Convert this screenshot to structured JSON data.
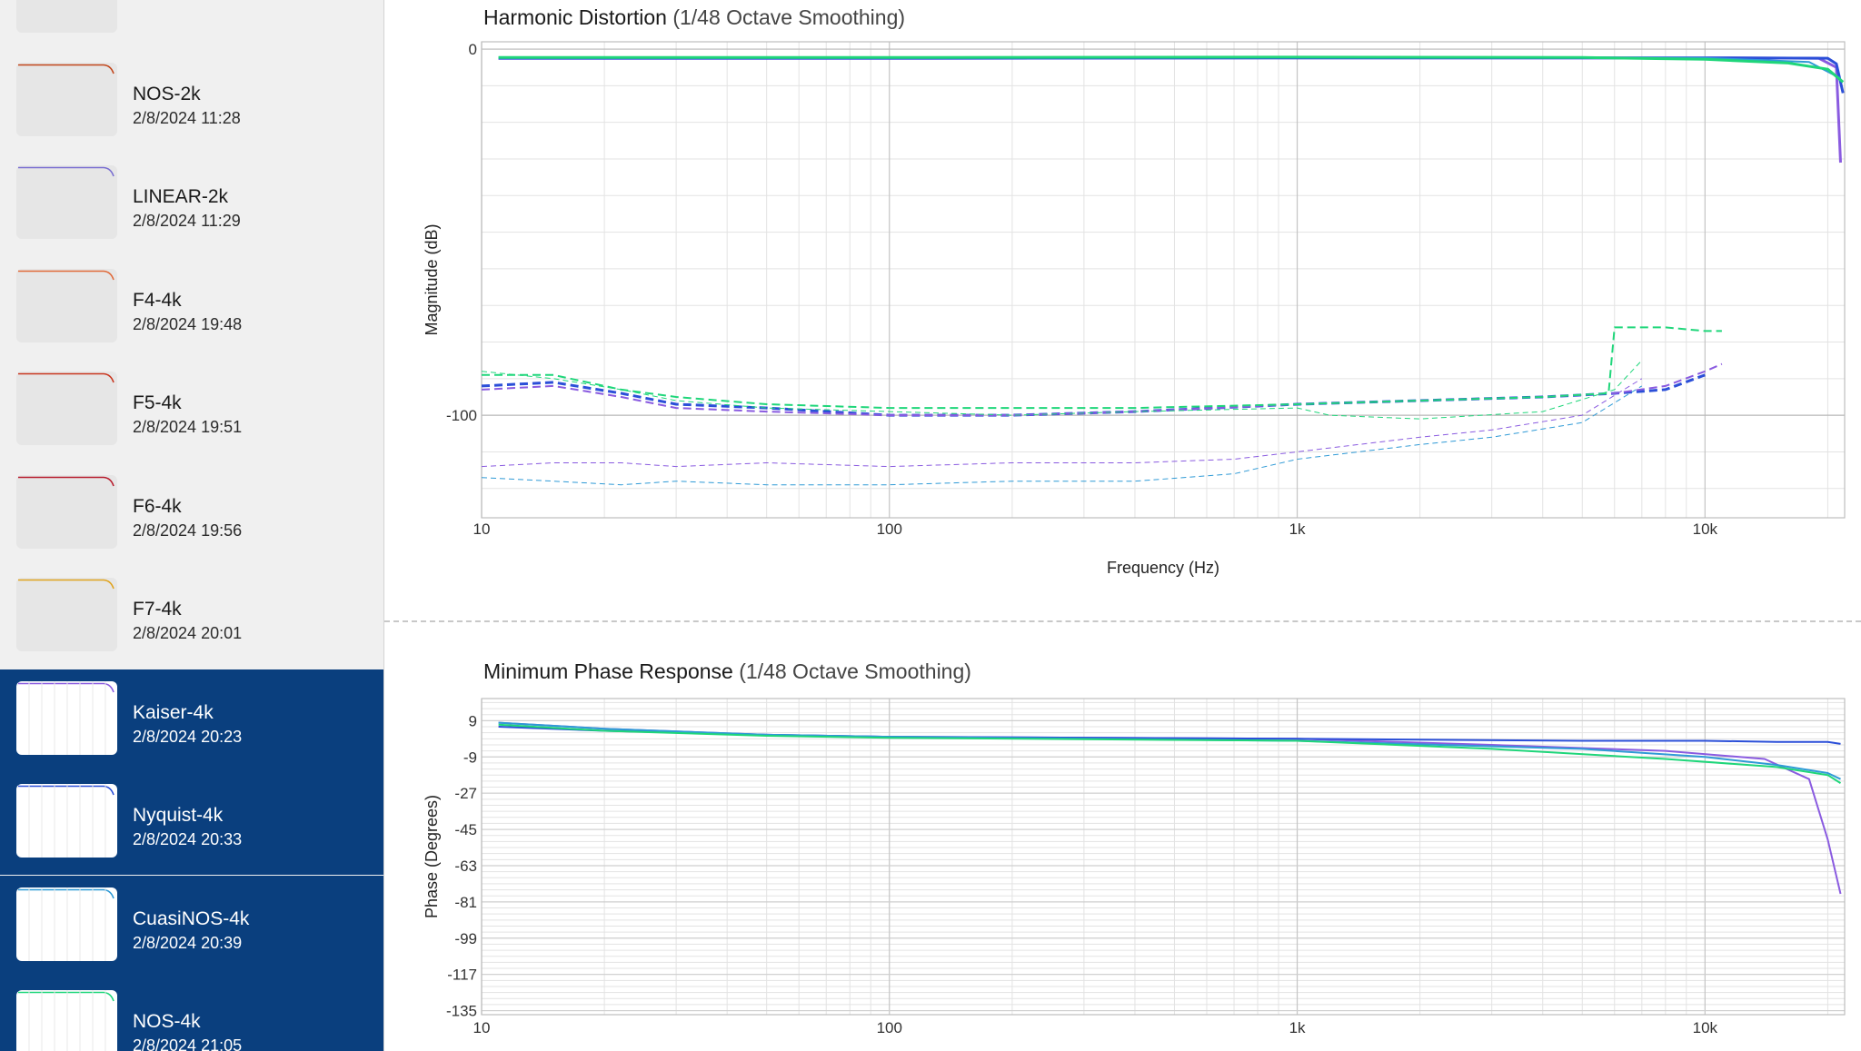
{
  "sidebar": {
    "items": [
      {
        "name": "",
        "date": "",
        "selected": false,
        "color": "#9a9a9a"
      },
      {
        "name": "NOS-2k",
        "date": "2/8/2024 11:28",
        "selected": false,
        "color": "#c2461b"
      },
      {
        "name": "LINEAR-2k",
        "date": "2/8/2024 11:29",
        "selected": false,
        "color": "#7a6fd1"
      },
      {
        "name": "F4-4k",
        "date": "2/8/2024 19:48",
        "selected": false,
        "color": "#e06a3a"
      },
      {
        "name": "F5-4k",
        "date": "2/8/2024 19:51",
        "selected": false,
        "color": "#c9361f"
      },
      {
        "name": "F6-4k",
        "date": "2/8/2024 19:56",
        "selected": false,
        "color": "#b81d2e"
      },
      {
        "name": "F7-4k",
        "date": "2/8/2024 20:01",
        "selected": false,
        "color": "#e0a31e"
      },
      {
        "name": "Kaiser-4k",
        "date": "2/8/2024 20:23",
        "selected": true,
        "color": "#8a5be0"
      },
      {
        "name": "Nyquist-4k",
        "date": "2/8/2024 20:33",
        "selected": true,
        "color": "#2b4fd8"
      },
      {
        "name": "CuasiNOS-4k",
        "date": "2/8/2024 20:39",
        "selected": true,
        "color": "#2f9ad6"
      },
      {
        "name": "NOS-4k",
        "date": "2/8/2024 21:05",
        "selected": true,
        "color": "#1fd67a"
      }
    ]
  },
  "chart_data": [
    {
      "type": "line",
      "title": "Harmonic Distortion",
      "subtitle": "(1/48 Octave Smoothing)",
      "xlabel": "Frequency (Hz)",
      "ylabel": "Magnitude (dB)",
      "xscale": "log",
      "xlim": [
        10,
        22000
      ],
      "ylim": [
        -128,
        2
      ],
      "xticks": [
        {
          "v": 10,
          "label": "10"
        },
        {
          "v": 100,
          "label": "100"
        },
        {
          "v": 1000,
          "label": "1k"
        },
        {
          "v": 10000,
          "label": "10k"
        }
      ],
      "yticks": [
        {
          "v": 0,
          "label": "0"
        },
        {
          "v": -100,
          "label": "-100"
        }
      ],
      "grid": true,
      "legend": "none",
      "series": [
        {
          "color": "#8a5be0",
          "dash": false,
          "width": 3,
          "x": [
            11,
            100,
            1000,
            10000,
            19000,
            21000,
            21500
          ],
          "y": [
            -2.5,
            -2.5,
            -2.4,
            -2.4,
            -2.5,
            -5,
            -31
          ]
        },
        {
          "color": "#2b4fd8",
          "dash": false,
          "width": 3,
          "x": [
            11,
            100,
            1000,
            10000,
            20000,
            21000,
            21800
          ],
          "y": [
            -2.5,
            -2.5,
            -2.4,
            -2.4,
            -2.5,
            -4,
            -12
          ]
        },
        {
          "color": "#2f9ad6",
          "dash": false,
          "width": 2,
          "x": [
            11,
            100,
            1000,
            10000,
            18000,
            21500
          ],
          "y": [
            -2.3,
            -2.3,
            -2.2,
            -2.4,
            -3.5,
            -8
          ]
        },
        {
          "color": "#1fd67a",
          "dash": false,
          "width": 3,
          "x": [
            11,
            100,
            1000,
            5000,
            10000,
            16000,
            20000,
            21800
          ],
          "y": [
            -2.3,
            -2.3,
            -2.2,
            -2.3,
            -2.8,
            -3.8,
            -5.5,
            -9
          ]
        },
        {
          "color": "#2b4fd8",
          "dash": true,
          "width": 3,
          "x": [
            10,
            15,
            22,
            30,
            50,
            100,
            200,
            400,
            1000,
            2000,
            4000,
            6000,
            8000,
            10000
          ],
          "y": [
            -92,
            -91,
            -94,
            -97,
            -98,
            -100,
            -100,
            -99,
            -97,
            -96,
            -95,
            -94,
            -93,
            -89
          ]
        },
        {
          "color": "#8a5be0",
          "dash": true,
          "width": 2,
          "x": [
            10,
            15,
            22,
            30,
            50,
            100,
            200,
            400,
            1000,
            2000,
            4000,
            6000,
            8000,
            10000,
            11000
          ],
          "y": [
            -93,
            -92,
            -95,
            -98,
            -99,
            -100,
            -100,
            -99,
            -97,
            -96,
            -95,
            -94,
            -92,
            -88,
            -86
          ]
        },
        {
          "color": "#1fd67a",
          "dash": true,
          "width": 2,
          "x": [
            10,
            15,
            22,
            30,
            50,
            100,
            200,
            400,
            1000,
            2000,
            4000,
            5800,
            6000,
            8000,
            10000,
            11000
          ],
          "y": [
            -89,
            -89,
            -93,
            -95,
            -97,
            -98,
            -98,
            -98,
            -97,
            -96,
            -95,
            -94,
            -76,
            -76,
            -77,
            -77
          ]
        },
        {
          "color": "#1fd67a",
          "dash": true,
          "width": 1,
          "x": [
            10,
            15,
            22,
            30,
            50,
            100,
            200,
            400,
            1000,
            1200,
            2000,
            4000,
            6000,
            7000
          ],
          "y": [
            -88,
            -90,
            -93,
            -96,
            -98,
            -99,
            -100,
            -99,
            -98,
            -100,
            -101,
            -99,
            -93,
            -85
          ]
        },
        {
          "color": "#8a5be0",
          "dash": true,
          "width": 1,
          "x": [
            10,
            15,
            22,
            30,
            50,
            100,
            200,
            400,
            700,
            1000,
            2000,
            3000,
            5000,
            7000
          ],
          "y": [
            -114,
            -113,
            -113,
            -114,
            -113,
            -114,
            -113,
            -113,
            -112,
            -110,
            -106,
            -104,
            -100,
            -90
          ]
        },
        {
          "color": "#2f9ad6",
          "dash": true,
          "width": 1,
          "x": [
            10,
            15,
            22,
            30,
            50,
            100,
            200,
            400,
            700,
            1000,
            2000,
            3000,
            5000,
            7000
          ],
          "y": [
            -117,
            -118,
            -119,
            -118,
            -119,
            -119,
            -118,
            -118,
            -116,
            -112,
            -108,
            -106,
            -102,
            -92
          ]
        }
      ]
    },
    {
      "type": "line",
      "title": "Minimum Phase Response",
      "subtitle": "(1/48 Octave Smoothing)",
      "xlabel": "",
      "ylabel": "Phase (Degrees)",
      "xscale": "log",
      "xlim": [
        10,
        22000
      ],
      "ylim": [
        -137,
        20
      ],
      "xticks": [
        {
          "v": 10,
          "label": "10"
        },
        {
          "v": 100,
          "label": "100"
        },
        {
          "v": 1000,
          "label": "1k"
        },
        {
          "v": 10000,
          "label": "10k"
        }
      ],
      "yticks": [
        {
          "v": 9,
          "label": "9"
        },
        {
          "v": -9,
          "label": "-9"
        },
        {
          "v": -27,
          "label": "-27"
        },
        {
          "v": -45,
          "label": "-45"
        },
        {
          "v": -63,
          "label": "-63"
        },
        {
          "v": -81,
          "label": "-81"
        },
        {
          "v": -99,
          "label": "-99"
        },
        {
          "v": -117,
          "label": "-117"
        },
        {
          "v": -135,
          "label": "-135"
        }
      ],
      "grid": true,
      "legend": "none",
      "series": [
        {
          "color": "#8a5be0",
          "dash": false,
          "width": 2,
          "x": [
            11,
            20,
            50,
            100,
            1000,
            3000,
            8000,
            14000,
            18000,
            20000,
            21500
          ],
          "y": [
            8,
            5,
            2,
            1,
            0,
            -3,
            -6,
            -10,
            -20,
            -50,
            -77
          ]
        },
        {
          "color": "#2b4fd8",
          "dash": false,
          "width": 2,
          "x": [
            11,
            20,
            50,
            100,
            1000,
            5000,
            10000,
            15000,
            20000,
            21500
          ],
          "y": [
            6,
            4,
            2,
            1,
            0,
            -1,
            -1,
            -1.5,
            -1.5,
            -2.5
          ]
        },
        {
          "color": "#2f9ad6",
          "dash": false,
          "width": 2,
          "x": [
            11,
            20,
            50,
            100,
            1000,
            5000,
            10000,
            15000,
            20000,
            21500
          ],
          "y": [
            8,
            5,
            2,
            1,
            -1,
            -5,
            -9,
            -13,
            -17,
            -20
          ]
        },
        {
          "color": "#1fd67a",
          "dash": false,
          "width": 2,
          "x": [
            11,
            20,
            50,
            100,
            1000,
            3000,
            8000,
            15000,
            20000,
            21500
          ],
          "y": [
            7,
            4,
            1.5,
            0.5,
            -1,
            -5,
            -10,
            -14,
            -18,
            -22
          ]
        }
      ]
    }
  ]
}
